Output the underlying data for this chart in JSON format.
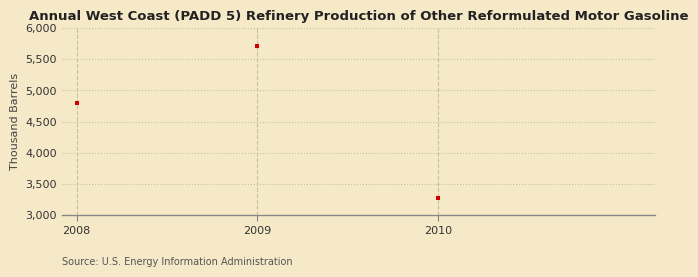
{
  "title": "Annual West Coast (PADD 5) Refinery Production of Other Reformulated Motor Gasoline",
  "ylabel": "Thousand Barrels",
  "source": "Source: U.S. Energy Information Administration",
  "x": [
    2008,
    2009,
    2010
  ],
  "y": [
    4800,
    5720,
    3270
  ],
  "xlim": [
    2007.92,
    2011.2
  ],
  "ylim": [
    3000,
    6000
  ],
  "yticks": [
    3000,
    3500,
    4000,
    4500,
    5000,
    5500,
    6000
  ],
  "xticks": [
    2008,
    2009,
    2010
  ],
  "background_color": "#f5e9c8",
  "marker_color": "#cc0000",
  "grid_color": "#c8bfa0",
  "title_fontsize": 9.5,
  "label_fontsize": 8,
  "tick_fontsize": 8,
  "source_fontsize": 7
}
